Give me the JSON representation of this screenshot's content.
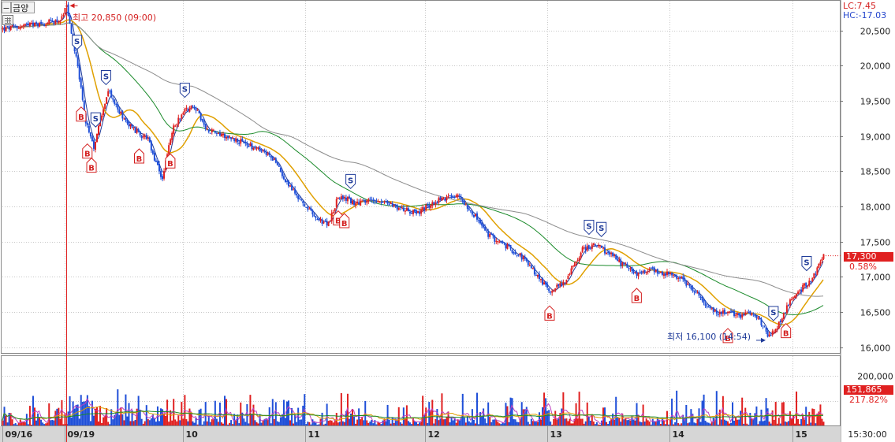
{
  "toolbar": {
    "minus": "−",
    "name": "금양"
  },
  "legend": {
    "lc": "LC:7.45",
    "hc": "HC:-17.03"
  },
  "annotations": {
    "high": "최고 20,850 (09:00)",
    "low": "최저 16,100 (14:54)"
  },
  "current": {
    "price": "17,300",
    "price_change": "0.58%",
    "volume": "151,865",
    "volume_ratio": "217.82%"
  },
  "time_label": "15:30:00",
  "colors": {
    "up": "#e02020",
    "down": "#1f4fd8",
    "ma_short": "#1f3b99",
    "ma_mid": "#e0a000",
    "ma_long": "#1a8a2a",
    "ma_longest": "#8c8c8c",
    "marker": "#d42020"
  },
  "chart_data": {
    "type": "candlestick",
    "price": {
      "y_ticks": [
        20500,
        20000,
        19500,
        19000,
        18500,
        18000,
        17500,
        17000,
        16500,
        16000
      ],
      "y_tick_labels": [
        "20,500",
        "20,000",
        "19,500",
        "19,000",
        "18,500",
        "18,000",
        "17,500",
        "17,000",
        "16,500",
        "16,000"
      ],
      "ylim": [
        15920,
        20920
      ],
      "high": 20850,
      "low": 16100,
      "last": 17300,
      "path": [
        [
          0,
          20520
        ],
        [
          0.5,
          20560
        ],
        [
          1.0,
          20600
        ],
        [
          1.4,
          20650
        ],
        [
          1.55,
          20850
        ],
        [
          1.65,
          20450
        ],
        [
          1.8,
          20050
        ],
        [
          2.0,
          19200
        ],
        [
          2.2,
          18800
        ],
        [
          2.35,
          19250
        ],
        [
          2.55,
          19650
        ],
        [
          2.75,
          19400
        ],
        [
          3.0,
          19200
        ],
        [
          3.25,
          19050
        ],
        [
          3.5,
          18950
        ],
        [
          3.7,
          18600
        ],
        [
          3.85,
          18400
        ],
        [
          4.1,
          19100
        ],
        [
          4.35,
          19350
        ],
        [
          4.6,
          19450
        ],
        [
          4.9,
          19100
        ],
        [
          5.2,
          19050
        ],
        [
          5.6,
          18950
        ],
        [
          6.0,
          18850
        ],
        [
          6.5,
          18700
        ],
        [
          6.9,
          18300
        ],
        [
          7.3,
          18000
        ],
        [
          7.6,
          17800
        ],
        [
          7.85,
          17750
        ],
        [
          8.1,
          18150
        ],
        [
          8.5,
          18050
        ],
        [
          9.0,
          18100
        ],
        [
          9.5,
          18000
        ],
        [
          10.0,
          17900
        ],
        [
          10.5,
          18100
        ],
        [
          11.0,
          18150
        ],
        [
          11.35,
          17900
        ],
        [
          11.7,
          17600
        ],
        [
          12.1,
          17450
        ],
        [
          12.5,
          17300
        ],
        [
          12.85,
          17050
        ],
        [
          13.05,
          16900
        ],
        [
          13.2,
          16800
        ],
        [
          13.6,
          16950
        ],
        [
          13.8,
          17200
        ],
        [
          14.0,
          17400
        ],
        [
          14.3,
          17450
        ],
        [
          14.7,
          17300
        ],
        [
          15.0,
          17150
        ],
        [
          15.3,
          17050
        ],
        [
          15.6,
          17100
        ],
        [
          16.0,
          17050
        ],
        [
          16.3,
          17000
        ],
        [
          16.6,
          16850
        ],
        [
          16.9,
          16650
        ],
        [
          17.2,
          16500
        ],
        [
          17.5,
          16480
        ],
        [
          17.8,
          16450
        ],
        [
          18.1,
          16520
        ],
        [
          18.3,
          16350
        ],
        [
          18.45,
          16150
        ],
        [
          18.6,
          16200
        ],
        [
          18.85,
          16500
        ],
        [
          19.05,
          16700
        ],
        [
          19.3,
          16850
        ],
        [
          19.55,
          17000
        ],
        [
          19.8,
          17300
        ]
      ]
    },
    "volume": {
      "y_ticks": [
        200000,
        100000
      ],
      "y_tick_labels": [
        "200,000",
        "100,000"
      ],
      "ylim": [
        0,
        280000
      ],
      "last": 151865,
      "ratio": "217.82%"
    },
    "x_labels": [
      "09/16",
      "09/19",
      "10",
      "11",
      "12",
      "13",
      "14",
      "15"
    ],
    "x_positions": [
      0,
      1.5,
      4.35,
      7.3,
      10.2,
      13.15,
      16.1,
      19.05
    ],
    "x_range": [
      0,
      20.2
    ],
    "signals": [
      {
        "t": 1.8,
        "type": "S"
      },
      {
        "t": 1.9,
        "type": "B"
      },
      {
        "t": 2.05,
        "type": "B"
      },
      {
        "t": 2.15,
        "type": "B"
      },
      {
        "t": 2.25,
        "type": "S"
      },
      {
        "t": 2.5,
        "type": "S"
      },
      {
        "t": 3.3,
        "type": "B"
      },
      {
        "t": 4.05,
        "type": "B"
      },
      {
        "t": 4.4,
        "type": "S"
      },
      {
        "t": 8.1,
        "type": "B"
      },
      {
        "t": 8.4,
        "type": "S"
      },
      {
        "t": 8.25,
        "type": "B"
      },
      {
        "t": 13.2,
        "type": "B"
      },
      {
        "t": 14.15,
        "type": "S"
      },
      {
        "t": 14.45,
        "type": "S"
      },
      {
        "t": 15.3,
        "type": "B"
      },
      {
        "t": 17.5,
        "type": "B"
      },
      {
        "t": 18.6,
        "type": "S"
      },
      {
        "t": 18.9,
        "type": "B"
      },
      {
        "t": 19.4,
        "type": "S"
      }
    ],
    "moving_averages": [
      "short",
      "mid",
      "long",
      "longest"
    ],
    "grid": true
  }
}
